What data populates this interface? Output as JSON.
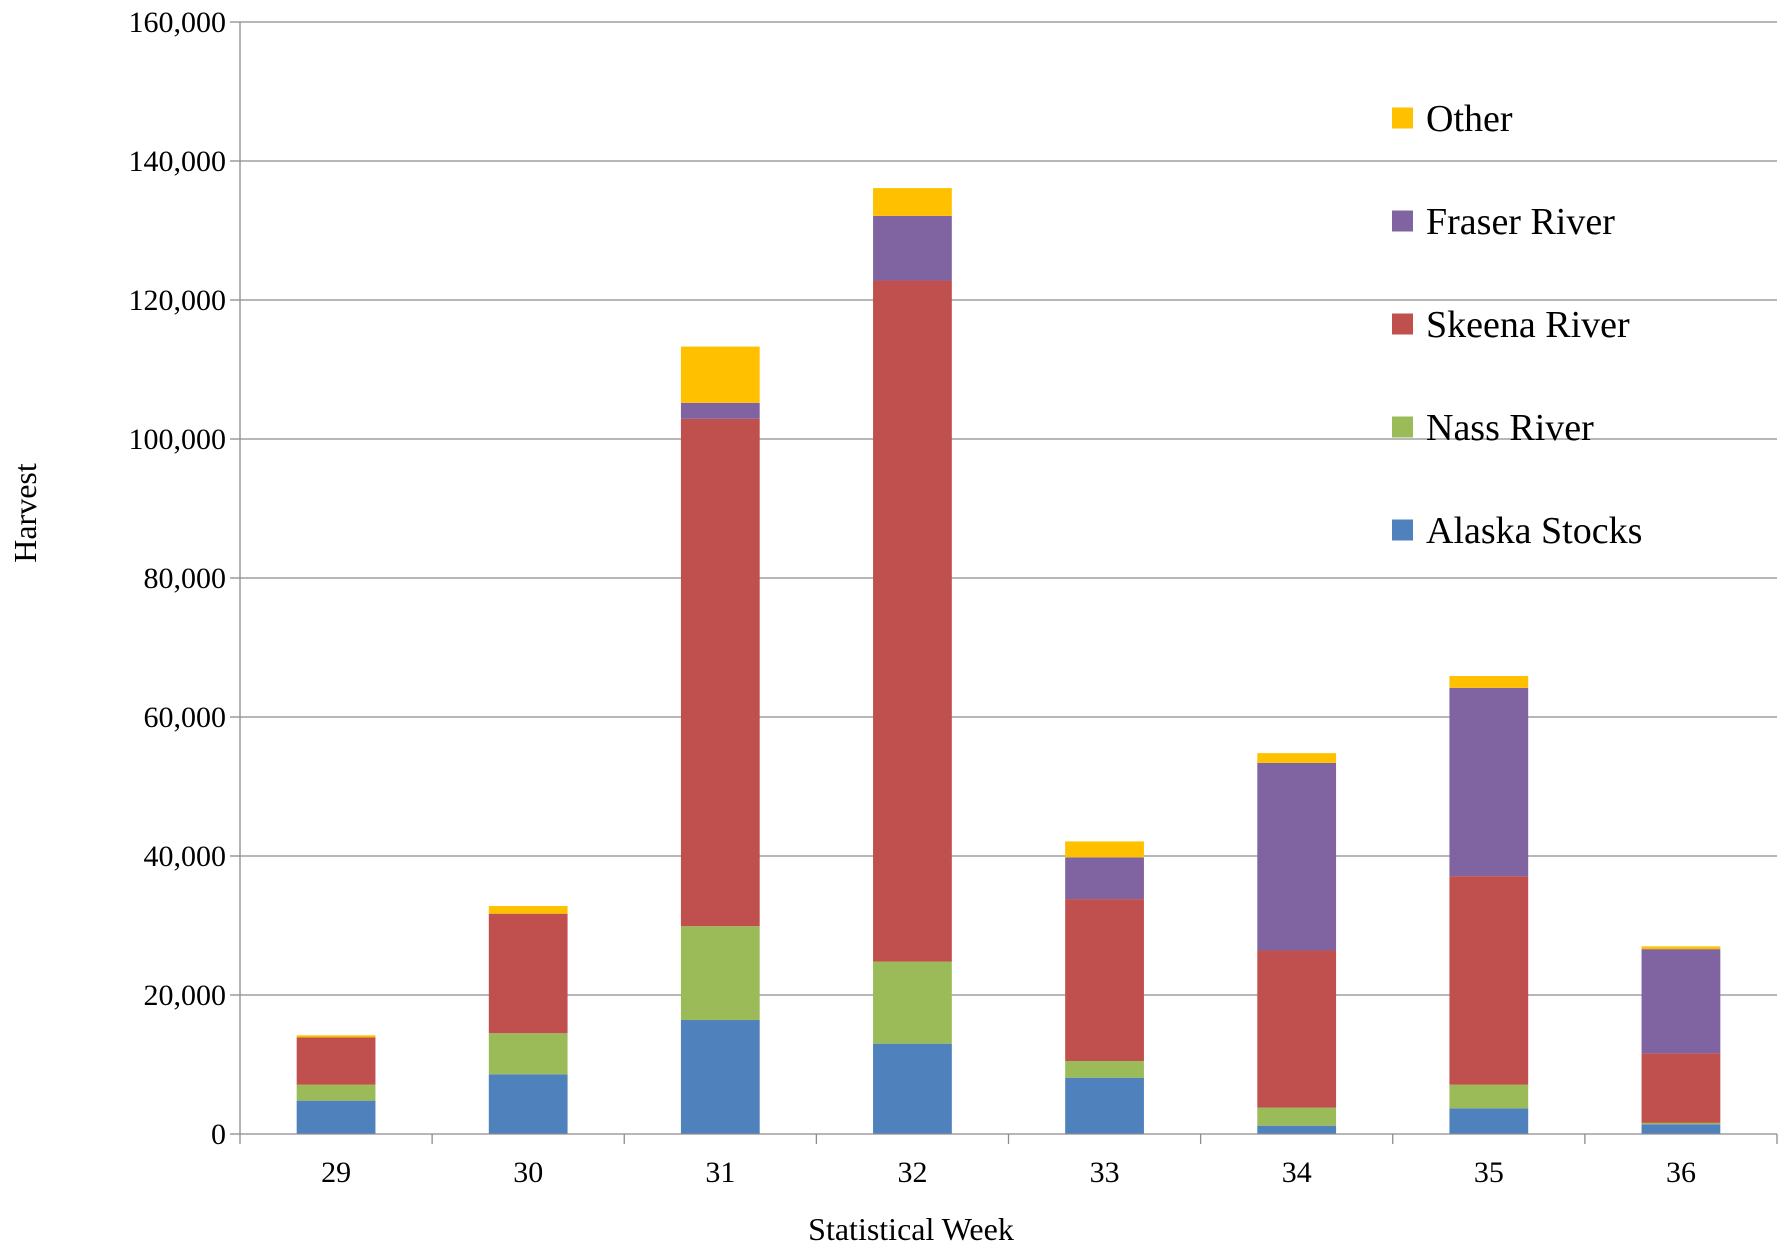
{
  "chart_data": {
    "type": "bar",
    "stacked": true,
    "title": "",
    "xlabel": "Statistical Week",
    "ylabel": "Harvest",
    "ylim": [
      0,
      160000
    ],
    "yticks": [
      0,
      20000,
      40000,
      60000,
      80000,
      100000,
      120000,
      140000,
      160000
    ],
    "ytick_labels": [
      "0",
      "20,000",
      "40,000",
      "60,000",
      "80,000",
      "100,000",
      "120,000",
      "140,000",
      "160,000"
    ],
    "grid": true,
    "legend_position": "top-right",
    "categories": [
      "29",
      "30",
      "31",
      "32",
      "33",
      "34",
      "35",
      "36"
    ],
    "series": [
      {
        "name": "Alaska Stocks",
        "color": "#4F81BD",
        "values": [
          4800,
          8600,
          16400,
          13000,
          8100,
          1200,
          3700,
          1400
        ]
      },
      {
        "name": "Nass River",
        "color": "#9BBB59",
        "values": [
          2300,
          5900,
          13500,
          11800,
          2400,
          2600,
          3400,
          200
        ]
      },
      {
        "name": "Skeena River",
        "color": "#C0504D",
        "values": [
          6800,
          17200,
          73000,
          98000,
          23300,
          22600,
          30000,
          10000
        ]
      },
      {
        "name": "Fraser River",
        "color": "#8064A2",
        "values": [
          0,
          0,
          2300,
          9300,
          6000,
          27000,
          27100,
          15000
        ]
      },
      {
        "name": "Other",
        "color": "#FFC000",
        "values": [
          300,
          1100,
          8100,
          4000,
          2300,
          1400,
          1700,
          400
        ]
      }
    ]
  }
}
